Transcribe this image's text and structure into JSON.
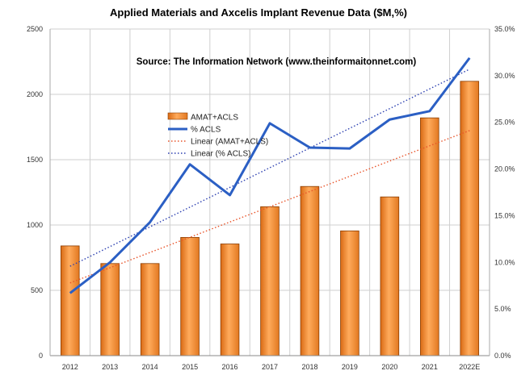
{
  "chart_data": {
    "type": "bar+line",
    "title": "Applied Materials and Axcelis Implant Revenue Data ($M,%)",
    "subtitle": "Source: The Information Network (www.theinformaitonnet.com)",
    "categories": [
      "2012",
      "2013",
      "2014",
      "2015",
      "2016",
      "2017",
      "2018",
      "2019",
      "2020",
      "2021",
      "2022E"
    ],
    "series": [
      {
        "name": "AMAT+ACLS",
        "type": "bar",
        "axis": "left",
        "color": "#f28a2e",
        "values": [
          840,
          705,
          705,
          905,
          855,
          1140,
          1295,
          955,
          1215,
          1820,
          2100
        ]
      },
      {
        "name": "% ACLS",
        "type": "line",
        "axis": "right",
        "color": "#2b5fc4",
        "values": [
          6.7,
          10.0,
          14.3,
          20.5,
          17.2,
          24.9,
          22.3,
          22.2,
          25.3,
          26.2,
          31.9
        ]
      },
      {
        "name": "Linear (AMAT+ACLS)",
        "type": "trendline",
        "of": "AMAT+ACLS",
        "axis": "left",
        "color": "#e8542a"
      },
      {
        "name": "Linear (% ACLS)",
        "type": "trendline",
        "of": "% ACLS",
        "axis": "right",
        "color": "#2b3fb0"
      }
    ],
    "y_left": {
      "ylim": [
        0,
        2500
      ],
      "ticks": [
        "0",
        "500",
        "1000",
        "1500",
        "2000",
        "2500"
      ]
    },
    "y_right": {
      "ylim": [
        0,
        35
      ],
      "ticks": [
        "0.0%",
        "5.0%",
        "10.0%",
        "15.0%",
        "20.0%",
        "25.0%",
        "30.0%",
        "35.0%"
      ]
    },
    "grid": true,
    "legend_position": "upper-left inside plot"
  }
}
